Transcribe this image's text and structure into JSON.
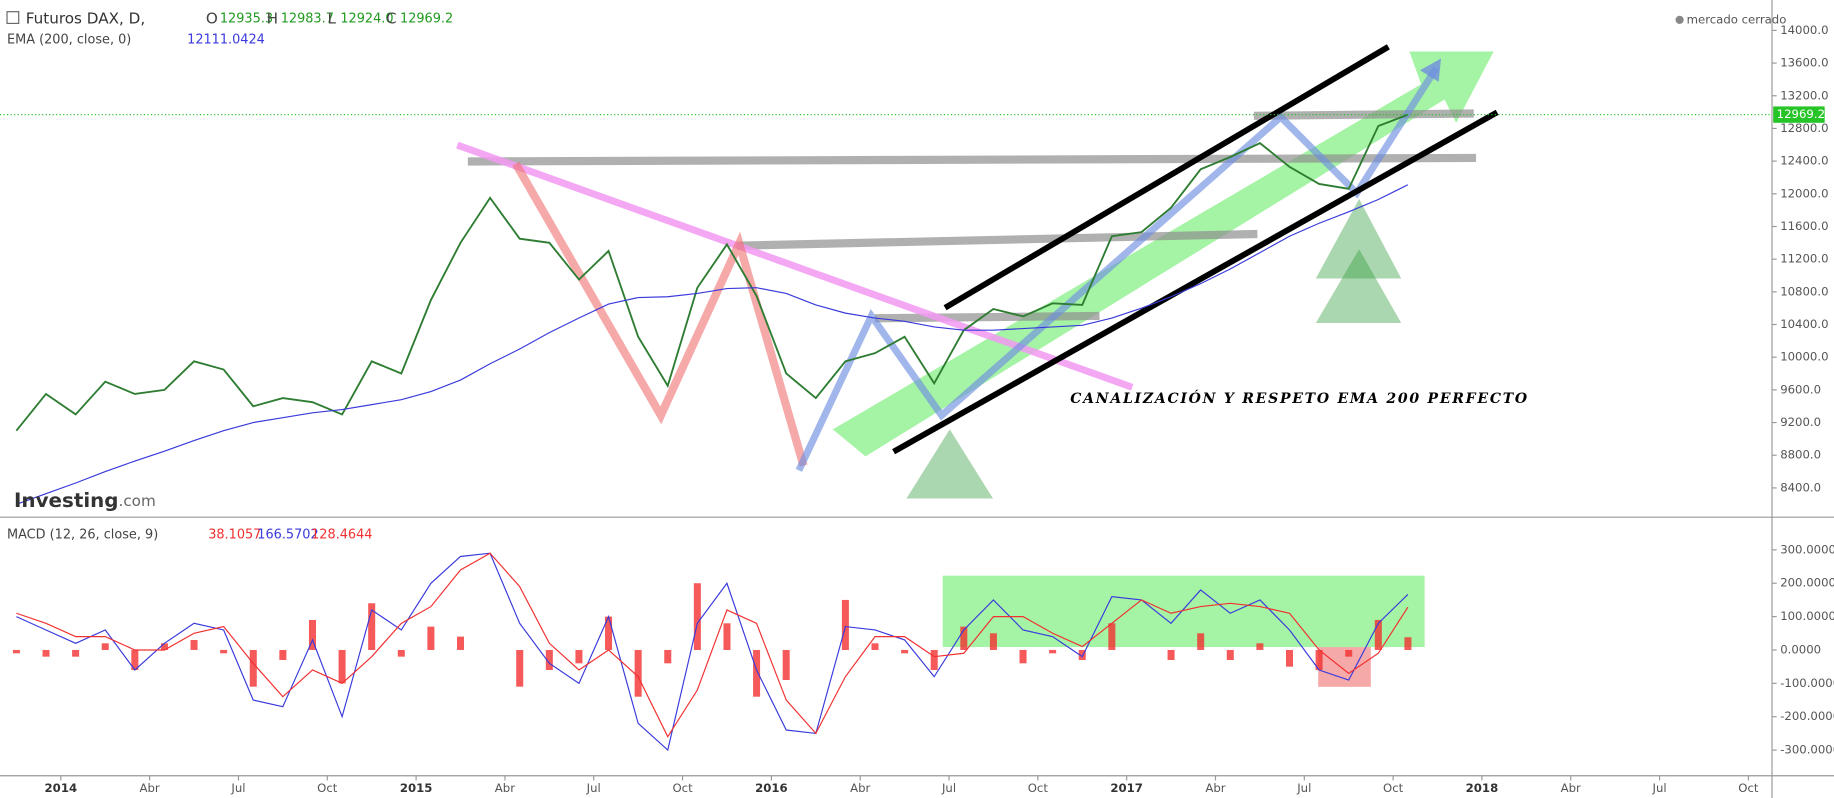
{
  "header": {
    "symbol": "Futuros DAX, D,",
    "o_label": "O",
    "o": "12935.3",
    "h_label": "H",
    "h": "12983.7",
    "l_label": "L",
    "l": "12924.0",
    "c_label": "C",
    "c": "12969.2",
    "ema_label": "EMA (200, close, 0)",
    "ema_value": "12111.0424",
    "market_status": "mercado cerrado",
    "logo": "Investing",
    "logo_suffix": ".com",
    "annotation": "CANALIZACIÓN Y RESPETO EMA 200 PERFECTO",
    "macd_label": "MACD (12, 26, close, 9)",
    "macd_hist": "38.1057",
    "macd_value": "166.5702",
    "macd_signal": "128.4644"
  },
  "chart_data": [
    {
      "type": "line",
      "x": [
        "2013-11",
        "2013-12",
        "2014-01",
        "2014-02",
        "2014-03",
        "2014-04",
        "2014-05",
        "2014-06",
        "2014-07",
        "2014-08",
        "2014-09",
        "2014-10",
        "2014-11",
        "2014-12",
        "2015-01",
        "2015-02",
        "2015-03",
        "2015-04",
        "2015-05",
        "2015-06",
        "2015-07",
        "2015-08",
        "2015-09",
        "2015-10",
        "2015-11",
        "2015-12",
        "2016-01",
        "2016-02",
        "2016-03",
        "2016-04",
        "2016-05",
        "2016-06",
        "2016-07",
        "2016-08",
        "2016-09",
        "2016-10",
        "2016-11",
        "2016-12",
        "2017-01",
        "2017-02",
        "2017-03",
        "2017-04",
        "2017-05",
        "2017-06",
        "2017-07",
        "2017-08",
        "2017-09",
        "2017-10"
      ],
      "series": [
        {
          "name": "Futuros DAX",
          "color": "#2e7d32",
          "values": [
            9100,
            9550,
            9300,
            9700,
            9550,
            9600,
            9950,
            9850,
            9400,
            9500,
            9450,
            9300,
            9950,
            9800,
            10700,
            11400,
            11950,
            11450,
            11400,
            10950,
            11300,
            10250,
            9650,
            10850,
            11380,
            10750,
            9800,
            9500,
            9950,
            10050,
            10250,
            9680,
            10330,
            10590,
            10500,
            10660,
            10640,
            11480,
            11530,
            11830,
            12300,
            12450,
            12620,
            12330,
            12120,
            12060,
            12830,
            12969.2
          ]
        },
        {
          "name": "EMA 200",
          "color": "#3a3adc",
          "values": [
            8200,
            8330,
            8460,
            8600,
            8730,
            8850,
            8980,
            9100,
            9200,
            9260,
            9320,
            9360,
            9420,
            9480,
            9580,
            9720,
            9920,
            10100,
            10300,
            10480,
            10650,
            10730,
            10740,
            10780,
            10840,
            10850,
            10780,
            10640,
            10540,
            10480,
            10440,
            10370,
            10330,
            10330,
            10350,
            10370,
            10390,
            10480,
            10600,
            10740,
            10900,
            11080,
            11280,
            11480,
            11640,
            11780,
            11930,
            12111.0424
          ]
        }
      ],
      "ylim": [
        8042,
        14372
      ],
      "yticks": [
        {
          "value": 8400,
          "label": "8400.0"
        },
        {
          "value": 8800,
          "label": "8800.0"
        },
        {
          "value": 9200,
          "label": "9200.0"
        },
        {
          "value": 9600,
          "label": "9600.0"
        },
        {
          "value": 10000,
          "label": "10000.0"
        },
        {
          "value": 10400,
          "label": "10400.0"
        },
        {
          "value": 10800,
          "label": "10800.0"
        },
        {
          "value": 11200,
          "label": "11200.0"
        },
        {
          "value": 11600,
          "label": "11600.0"
        },
        {
          "value": 12000,
          "label": "12000.0"
        },
        {
          "value": 12400,
          "label": "12400.0"
        },
        {
          "value": 12800,
          "label": "12800.0"
        },
        {
          "value": 13200,
          "label": "13200.0"
        },
        {
          "value": 13600,
          "label": "13600.0"
        },
        {
          "value": 14000,
          "label": "14000.0"
        }
      ],
      "last_price": 12969.2,
      "last_price_color": "#26c426"
    },
    {
      "type": "line",
      "x": [
        "2013-11",
        "2013-12",
        "2014-01",
        "2014-02",
        "2014-03",
        "2014-04",
        "2014-05",
        "2014-06",
        "2014-07",
        "2014-08",
        "2014-09",
        "2014-10",
        "2014-11",
        "2014-12",
        "2015-01",
        "2015-02",
        "2015-03",
        "2015-04",
        "2015-05",
        "2015-06",
        "2015-07",
        "2015-08",
        "2015-09",
        "2015-10",
        "2015-11",
        "2015-12",
        "2016-01",
        "2016-02",
        "2016-03",
        "2016-04",
        "2016-05",
        "2016-06",
        "2016-07",
        "2016-08",
        "2016-09",
        "2016-10",
        "2016-11",
        "2016-12",
        "2017-01",
        "2017-02",
        "2017-03",
        "2017-04",
        "2017-05",
        "2017-06",
        "2017-07",
        "2017-08",
        "2017-09",
        "2017-10"
      ],
      "series": [
        {
          "name": "Histogram",
          "color": "#f23030",
          "style": "bar",
          "values": [
            -10,
            -20,
            -20,
            20,
            -60,
            20,
            30,
            -10,
            -110,
            -30,
            90,
            -100,
            140,
            -20,
            70,
            40,
            0,
            -110,
            -60,
            -40,
            100,
            -140,
            -40,
            200,
            80,
            -140,
            -90,
            0,
            150,
            20,
            -10,
            -60,
            70,
            50,
            -40,
            -10,
            -30,
            80,
            0,
            -30,
            50,
            -30,
            20,
            -50,
            -60,
            -20,
            90,
            38.1057
          ]
        },
        {
          "name": "MACD",
          "color": "#3a3adc",
          "values": [
            100,
            60,
            20,
            60,
            -60,
            20,
            80,
            60,
            -150,
            -170,
            30,
            -200,
            120,
            60,
            200,
            280,
            290,
            80,
            -40,
            -100,
            100,
            -220,
            -300,
            80,
            200,
            -60,
            -240,
            -250,
            70,
            60,
            30,
            -80,
            60,
            150,
            60,
            40,
            -20,
            160,
            150,
            80,
            180,
            110,
            150,
            60,
            -60,
            -90,
            80,
            166.5702
          ]
        },
        {
          "name": "Signal",
          "color": "#f23030",
          "values": [
            110,
            80,
            40,
            40,
            0,
            0,
            50,
            70,
            -40,
            -140,
            -60,
            -100,
            -20,
            80,
            130,
            240,
            290,
            190,
            20,
            -60,
            0,
            -80,
            -260,
            -120,
            120,
            80,
            -150,
            -250,
            -80,
            40,
            40,
            -20,
            -10,
            100,
            100,
            50,
            10,
            80,
            150,
            110,
            130,
            140,
            130,
            110,
            0,
            -70,
            -10,
            128.4644
          ]
        }
      ],
      "ylim": [
        -377,
        398
      ],
      "yticks": [
        {
          "value": -300,
          "label": "-300.0000"
        },
        {
          "value": -200,
          "label": "-200.0000"
        },
        {
          "value": -100,
          "label": "-100.0000"
        },
        {
          "value": 0,
          "label": "0.0000"
        },
        {
          "value": 100,
          "label": "100.0000"
        },
        {
          "value": 200,
          "label": "200.0000"
        },
        {
          "value": 300,
          "label": "300.0000"
        }
      ],
      "xticks": [
        {
          "value": "2014-01",
          "label": "2014"
        },
        {
          "value": "2014-04",
          "label": "Abr"
        },
        {
          "value": "2014-07",
          "label": "Jul"
        },
        {
          "value": "2014-10",
          "label": "Oct"
        },
        {
          "value": "2015-01",
          "label": "2015"
        },
        {
          "value": "2015-04",
          "label": "Abr"
        },
        {
          "value": "2015-07",
          "label": "Jul"
        },
        {
          "value": "2015-10",
          "label": "Oct"
        },
        {
          "value": "2016-01",
          "label": "2016"
        },
        {
          "value": "2016-04",
          "label": "Abr"
        },
        {
          "value": "2016-07",
          "label": "Jul"
        },
        {
          "value": "2016-10",
          "label": "Oct"
        },
        {
          "value": "2017-01",
          "label": "2017"
        },
        {
          "value": "2017-04",
          "label": "Abr"
        },
        {
          "value": "2017-07",
          "label": "Jul"
        },
        {
          "value": "2017-10",
          "label": "Oct"
        },
        {
          "value": "2018-01",
          "label": "2018"
        },
        {
          "value": "2018-04",
          "label": "Abr"
        },
        {
          "value": "2018-07",
          "label": "Jul"
        },
        {
          "value": "2018-10",
          "label": "Oct"
        }
      ]
    }
  ]
}
